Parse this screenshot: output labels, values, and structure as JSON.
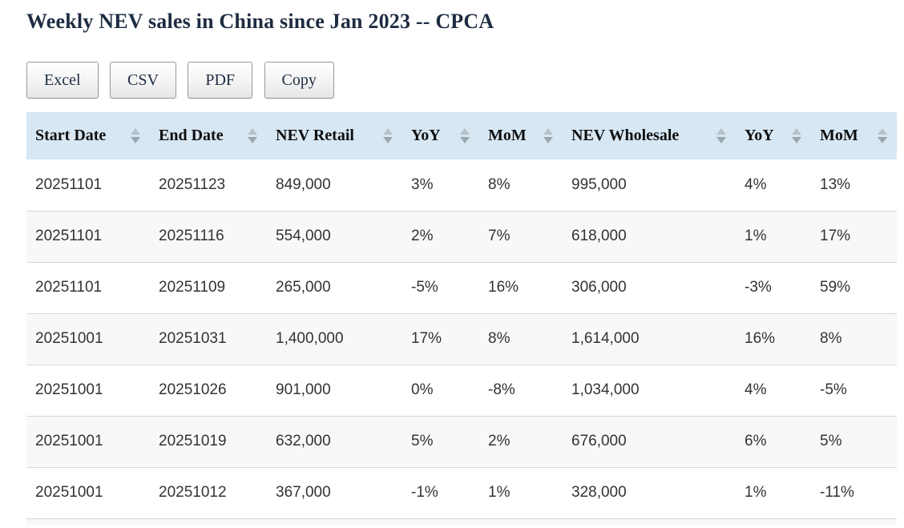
{
  "page": {
    "title": "Weekly NEV sales in China since Jan 2023 -- CPCA"
  },
  "toolbar": {
    "buttons": [
      "Excel",
      "CSV",
      "PDF",
      "Copy"
    ]
  },
  "table": {
    "columns": [
      {
        "label": "Start Date"
      },
      {
        "label": "End Date"
      },
      {
        "label": "NEV Retail"
      },
      {
        "label": "YoY"
      },
      {
        "label": "MoM"
      },
      {
        "label": "NEV Wholesale"
      },
      {
        "label": "YoY"
      },
      {
        "label": "MoM"
      }
    ],
    "rows": [
      [
        "20251101",
        "20251123",
        "849,000",
        "3%",
        "8%",
        "995,000",
        "4%",
        "13%"
      ],
      [
        "20251101",
        "20251116",
        "554,000",
        "2%",
        "7%",
        "618,000",
        "1%",
        "17%"
      ],
      [
        "20251101",
        "20251109",
        "265,000",
        "-5%",
        "16%",
        "306,000",
        "-3%",
        "59%"
      ],
      [
        "20251001",
        "20251031",
        "1,400,000",
        "17%",
        "8%",
        "1,614,000",
        "16%",
        "8%"
      ],
      [
        "20251001",
        "20251026",
        "901,000",
        "0%",
        "-8%",
        "1,034,000",
        "4%",
        "-5%"
      ],
      [
        "20251001",
        "20251019",
        "632,000",
        "5%",
        "2%",
        "676,000",
        "6%",
        "5%"
      ],
      [
        "20251001",
        "20251012",
        "367,000",
        "-1%",
        "1%",
        "328,000",
        "1%",
        "-11%"
      ]
    ]
  },
  "icons": {
    "sort_asc": "triangle-up",
    "sort_desc": "triangle-down"
  },
  "colors": {
    "header_bg": "#d7e7f4",
    "stripe_bg": "#f8f8f8",
    "row_border": "#d8d8d8",
    "title_text": "#1e2c42",
    "cell_text": "#333333",
    "sort_arrow_up": "#b7c1c7",
    "sort_arrow_down": "#9ba6ad"
  }
}
